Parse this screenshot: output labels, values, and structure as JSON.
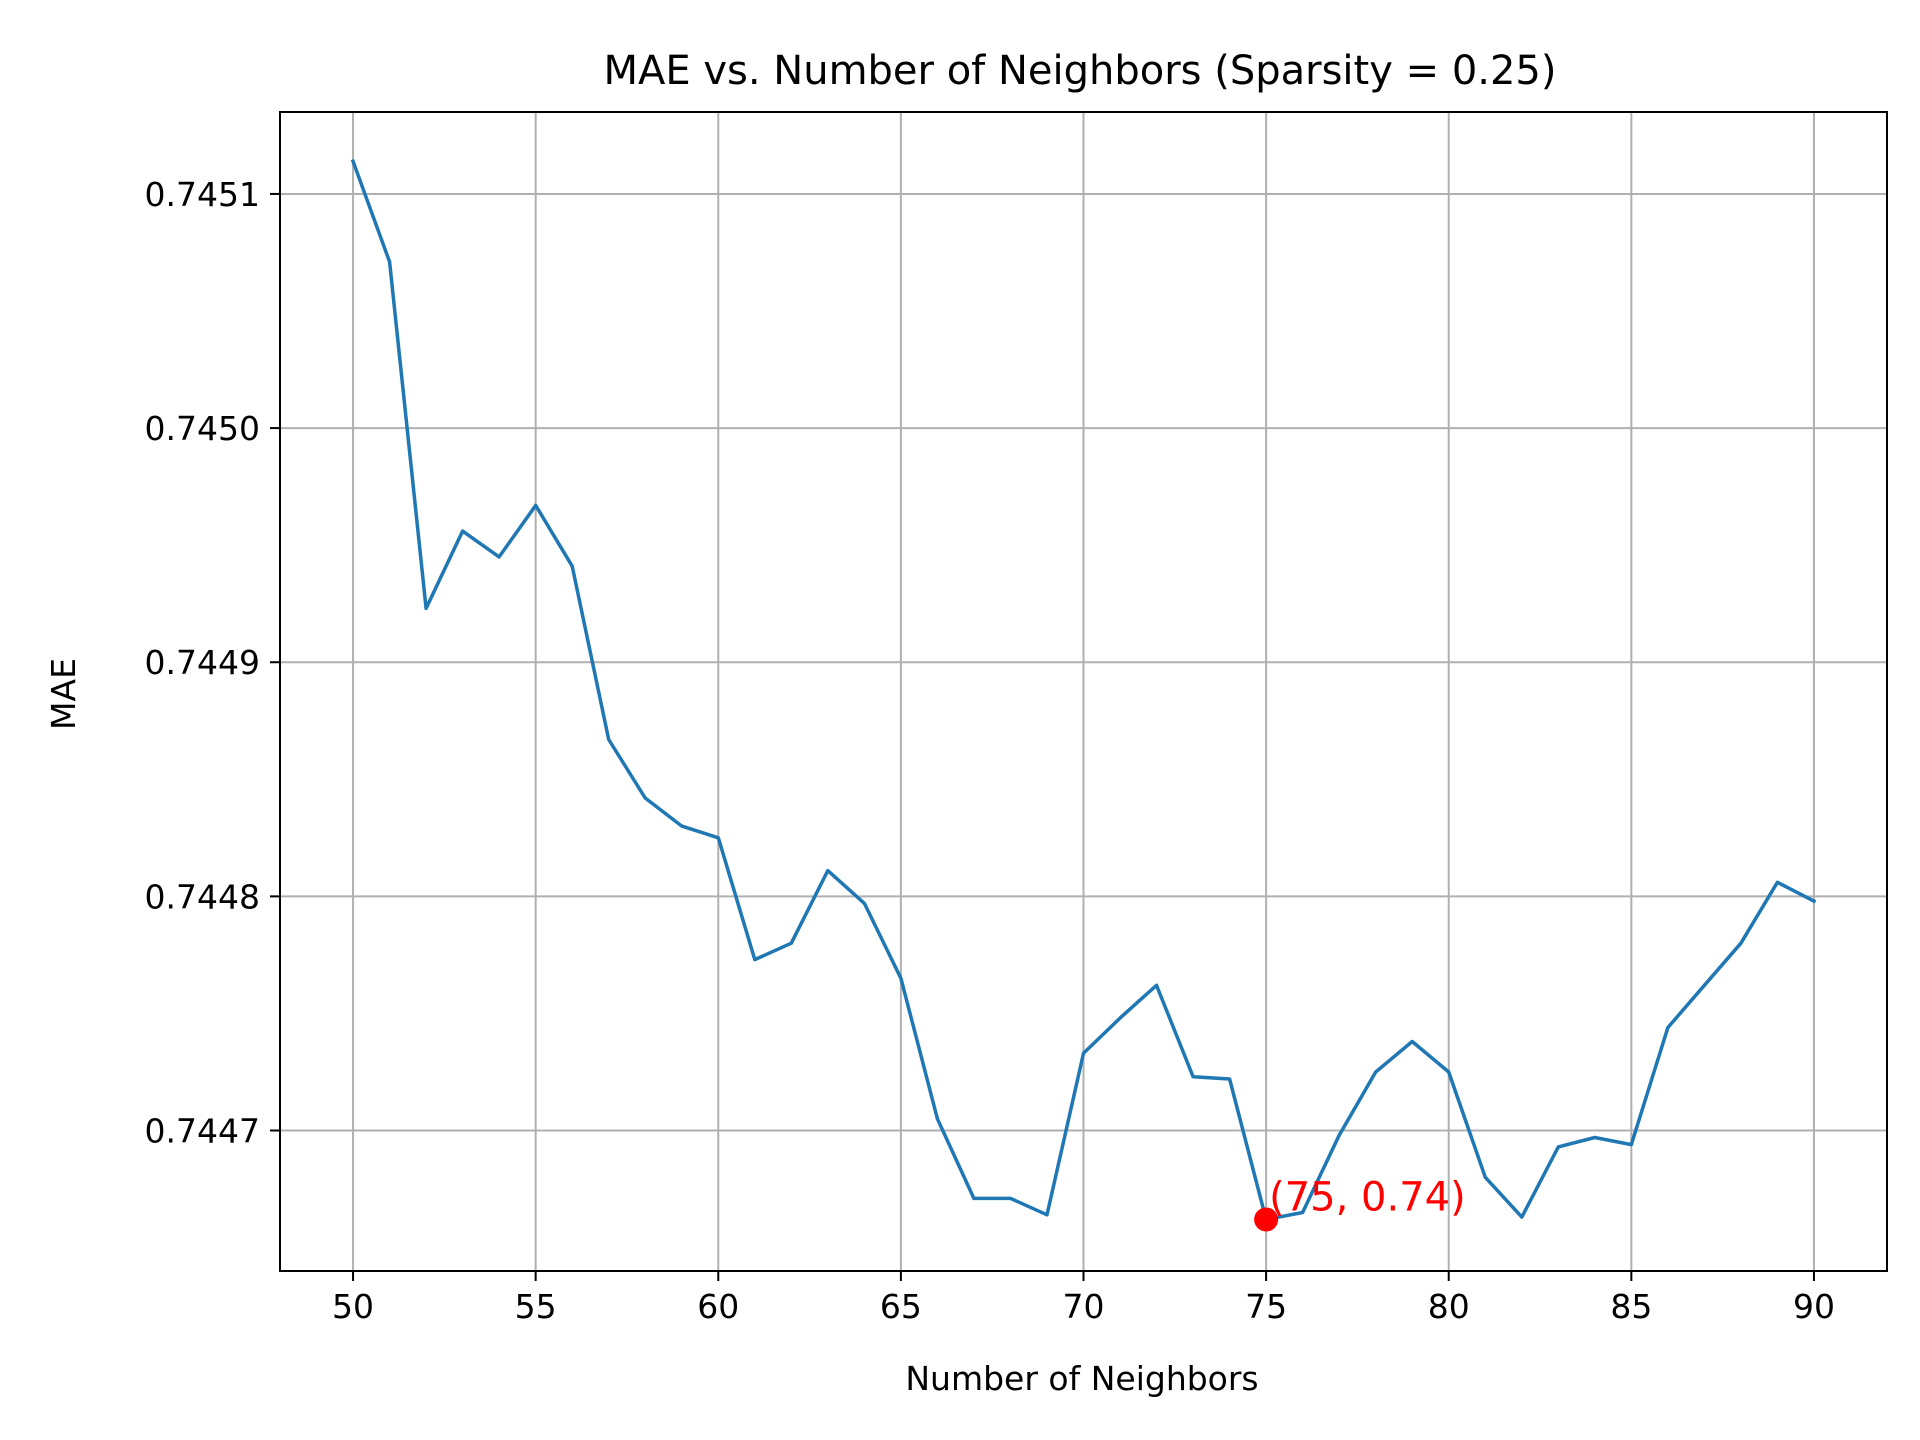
{
  "chart_data": {
    "type": "line",
    "title": "MAE vs. Number of Neighbors (Sparsity = 0.25)",
    "xlabel": "Number of Neighbors",
    "ylabel": "MAE",
    "xlim": [
      48,
      92
    ],
    "ylim": [
      0.74464,
      0.745135
    ],
    "x_ticks": [
      50,
      55,
      60,
      65,
      70,
      75,
      80,
      85,
      90
    ],
    "y_ticks": [
      0.7447,
      0.7448,
      0.7449,
      0.745,
      0.7451
    ],
    "x_tick_labels": [
      "50",
      "55",
      "60",
      "65",
      "70",
      "75",
      "80",
      "85",
      "90"
    ],
    "y_tick_labels": [
      "0.7447",
      "0.7448",
      "0.7449",
      "0.7450",
      "0.7451"
    ],
    "grid": true,
    "series": [
      {
        "color": "#1f77b4",
        "x": [
          50,
          51,
          52,
          53,
          54,
          55,
          56,
          57,
          58,
          59,
          60,
          61,
          62,
          63,
          64,
          65,
          66,
          67,
          68,
          69,
          70,
          71,
          72,
          73,
          74,
          75,
          76,
          77,
          78,
          79,
          80,
          81,
          82,
          83,
          84,
          85,
          86,
          87,
          88,
          89,
          90
        ],
        "y": [
          0.745114,
          0.745071,
          0.744923,
          0.744956,
          0.744945,
          0.744967,
          0.744941,
          0.744867,
          0.744842,
          0.74483,
          0.744825,
          0.744773,
          0.74478,
          0.744811,
          0.744797,
          0.744765,
          0.744705,
          0.744671,
          0.744671,
          0.744664,
          0.744733,
          0.744748,
          0.744762,
          0.744723,
          0.744722,
          0.744662,
          0.744665,
          0.744698,
          0.744725,
          0.744738,
          0.744725,
          0.74468,
          0.744663,
          0.744693,
          0.744697,
          0.744694,
          0.744744,
          0.744762,
          0.74478,
          0.744806,
          0.744798
        ]
      }
    ],
    "annotation": {
      "x": 75,
      "y": 0.744662,
      "label": "(75, 0.74)",
      "color": "#ff0000"
    }
  }
}
